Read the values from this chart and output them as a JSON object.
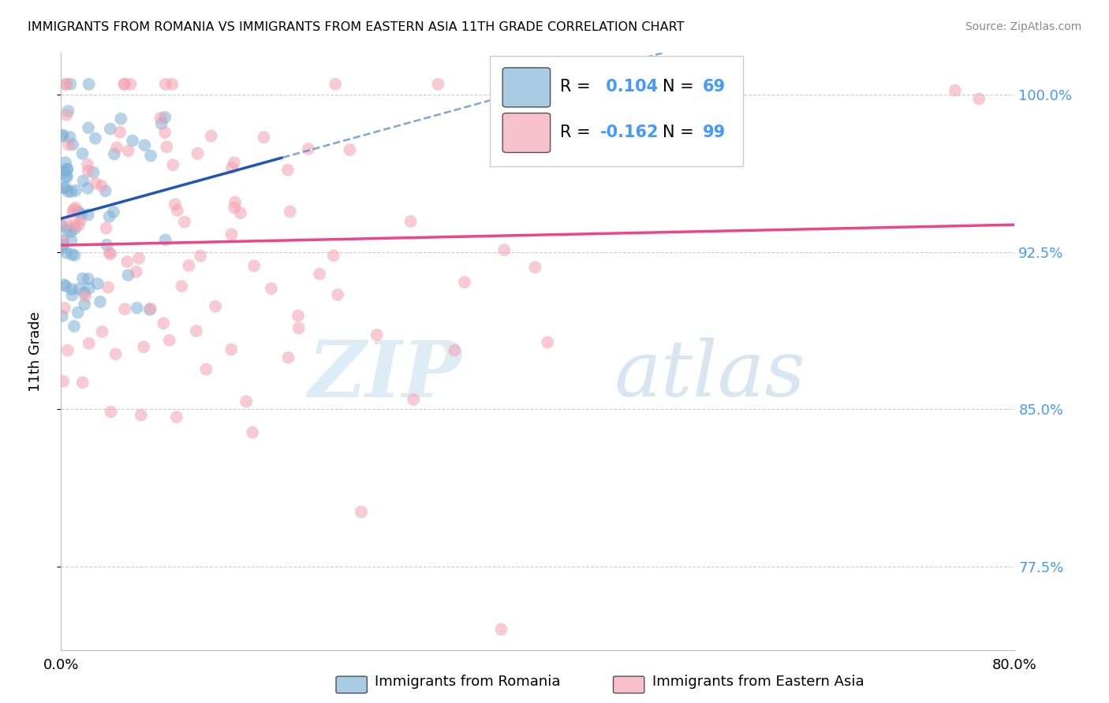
{
  "title": "IMMIGRANTS FROM ROMANIA VS IMMIGRANTS FROM EASTERN ASIA 11TH GRADE CORRELATION CHART",
  "source": "Source: ZipAtlas.com",
  "xlabel_blue": "Immigrants from Romania",
  "xlabel_pink": "Immigrants from Eastern Asia",
  "ylabel": "11th Grade",
  "xmin": 0.0,
  "xmax": 0.8,
  "ymin": 0.735,
  "ymax": 1.02,
  "yticks": [
    1.0,
    0.925,
    0.85,
    0.775
  ],
  "ytick_labels": [
    "100.0%",
    "92.5%",
    "85.0%",
    "77.5%"
  ],
  "xticks": [
    0.0,
    0.1,
    0.2,
    0.3,
    0.4,
    0.5,
    0.6,
    0.7,
    0.8
  ],
  "R_blue": 0.104,
  "N_blue": 69,
  "R_pink": -0.162,
  "N_pink": 99,
  "blue_color": "#7BAFD4",
  "pink_color": "#F4A0B0",
  "trend_blue_solid_color": "#2255BB",
  "trend_blue_dashed_color": "#5588CC",
  "trend_pink_color": "#EE4488",
  "watermark_zip": "ZIP",
  "watermark_atlas": "atlas",
  "grid_color": "#CCCCCC",
  "right_axis_color": "#4499FF"
}
